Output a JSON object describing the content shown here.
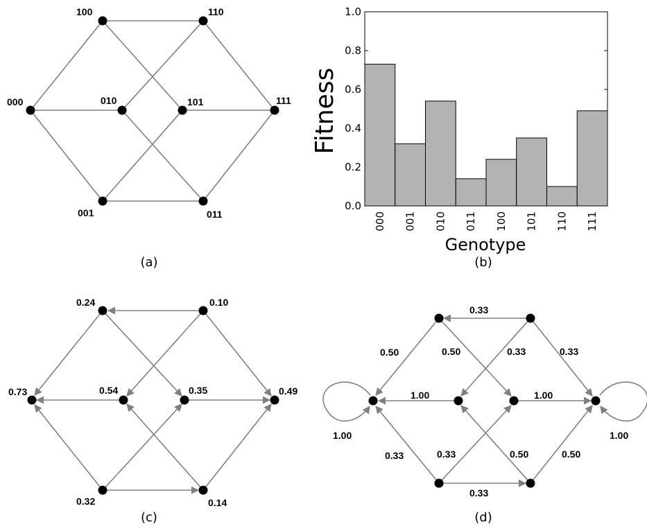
{
  "panel_a": {
    "panel_label": "(a)",
    "nodes": [
      "100",
      "110",
      "000",
      "010",
      "101",
      "111",
      "001",
      "011"
    ]
  },
  "panel_b": {
    "panel_label": "(b)"
  },
  "panel_c": {
    "panel_label": "(c)",
    "nodes": [
      "0.24",
      "0.10",
      "0.73",
      "0.54",
      "0.35",
      "0.49",
      "0.32",
      "0.14"
    ]
  },
  "panel_d": {
    "panel_label": "(d)",
    "edge_labels": [
      "0.33",
      "0.50",
      "0.50",
      "0.33",
      "0.33",
      "1.00",
      "1.00",
      "1.00",
      "1.00",
      "0.33",
      "0.33",
      "0.50",
      "0.50",
      "0.33"
    ]
  },
  "colors": {
    "edge": "#808080",
    "bar": "#b3b3b3",
    "node": "#000000"
  },
  "chart_data": {
    "type": "bar",
    "categories": [
      "000",
      "001",
      "010",
      "011",
      "100",
      "101",
      "110",
      "111"
    ],
    "values": [
      0.73,
      0.32,
      0.54,
      0.14,
      0.24,
      0.35,
      0.1,
      0.49
    ],
    "xlabel": "Genotype",
    "ylabel": "Fitness",
    "ylim": [
      0,
      1.0
    ],
    "yticks": [
      "0.0",
      "0.2",
      "0.4",
      "0.6",
      "0.8",
      "1.0"
    ]
  }
}
